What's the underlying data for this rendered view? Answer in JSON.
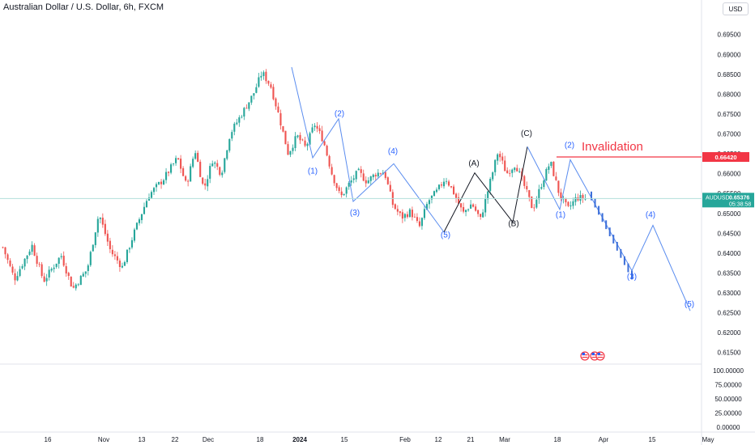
{
  "header": {
    "title": "Australian Dollar / U.S. Dollar, 6h, FXCM",
    "currency": "USD"
  },
  "colors": {
    "up": "#26a69a",
    "down": "#ef5350",
    "wave_blue": "#2962ff",
    "wave_line": "#5b8def",
    "wave_black": "#131722",
    "invalidation": "#f23645",
    "last_price": "#26a69a",
    "price_line": "#b2dfdb",
    "axis_text": "#131722",
    "separator": "#e0e3eb"
  },
  "chart_data": {
    "type": "candlestick",
    "symbol": "AUDUSD",
    "timeframe": "6h",
    "price_axis": {
      "ticks": [
        "0.69500",
        "0.69000",
        "0.68500",
        "0.68000",
        "0.67500",
        "0.67000",
        "0.66500",
        "0.66000",
        "0.65500",
        "0.65000",
        "0.64500",
        "0.64000",
        "0.63500",
        "0.63000",
        "0.62500",
        "0.62000",
        "0.61500"
      ],
      "ylim": [
        0.6125,
        0.698
      ]
    },
    "time_axis": {
      "ticks": [
        "16",
        "Nov",
        "13",
        "22",
        "Dec",
        "18",
        "2024",
        "15",
        "Feb",
        "12",
        "21",
        "Mar",
        "18",
        "Apr",
        "15",
        "May"
      ]
    },
    "price_series": {
      "anchors": [
        [
          0.0,
          0.6415
        ],
        [
          0.02,
          0.6335
        ],
        [
          0.05,
          0.642
        ],
        [
          0.07,
          0.633
        ],
        [
          0.1,
          0.6395
        ],
        [
          0.12,
          0.631
        ],
        [
          0.145,
          0.636
        ],
        [
          0.165,
          0.65
        ],
        [
          0.185,
          0.6405
        ],
        [
          0.205,
          0.6365
        ],
        [
          0.225,
          0.645
        ],
        [
          0.25,
          0.6545
        ],
        [
          0.275,
          0.6585
        ],
        [
          0.3,
          0.664
        ],
        [
          0.315,
          0.657
        ],
        [
          0.33,
          0.666
        ],
        [
          0.345,
          0.656
        ],
        [
          0.36,
          0.6635
        ],
        [
          0.375,
          0.66
        ],
        [
          0.39,
          0.67
        ],
        [
          0.41,
          0.675
        ],
        [
          0.43,
          0.68
        ],
        [
          0.445,
          0.6855
        ],
        [
          0.46,
          0.682
        ],
        [
          0.475,
          0.674
        ],
        [
          0.49,
          0.665
        ],
        [
          0.505,
          0.6695
        ],
        [
          0.52,
          0.6665
        ],
        [
          0.535,
          0.6725
        ],
        [
          0.55,
          0.6685
        ],
        [
          0.565,
          0.66
        ],
        [
          0.58,
          0.654
        ],
        [
          0.595,
          0.6575
        ],
        [
          0.61,
          0.6605
        ],
        [
          0.625,
          0.658
        ],
        [
          0.64,
          0.66
        ],
        [
          0.655,
          0.6605
        ],
        [
          0.67,
          0.652
        ],
        [
          0.685,
          0.649
        ],
        [
          0.7,
          0.6505
        ],
        [
          0.715,
          0.6465
        ],
        [
          0.73,
          0.653
        ],
        [
          0.745,
          0.6555
        ],
        [
          0.76,
          0.659
        ],
        [
          0.775,
          0.655
        ],
        [
          0.79,
          0.65
        ],
        [
          0.805,
          0.6525
        ],
        [
          0.82,
          0.6485
        ],
        [
          0.835,
          0.657
        ],
        [
          0.85,
          0.6655
        ],
        [
          0.865,
          0.66
        ],
        [
          0.88,
          0.6625
        ],
        [
          0.895,
          0.657
        ],
        [
          0.91,
          0.651
        ],
        [
          0.925,
          0.6575
        ],
        [
          0.94,
          0.663
        ],
        [
          0.955,
          0.655
        ],
        [
          0.97,
          0.651
        ],
        [
          0.985,
          0.654
        ],
        [
          1.0,
          0.65376
        ]
      ]
    },
    "last_price": {
      "value": "0.65376",
      "symbol": "AUDUSD",
      "countdown": "05:38:58"
    },
    "invalidation": {
      "label": "Invalidation",
      "price": "0.66420"
    },
    "wave_labels": [
      {
        "text": "(1)",
        "color": "blue",
        "price": 0.66
      },
      {
        "text": "(2)",
        "color": "blue",
        "price": 0.6745
      },
      {
        "text": "(3)",
        "color": "blue",
        "price": 0.6495
      },
      {
        "text": "(4)",
        "color": "blue",
        "price": 0.665
      },
      {
        "text": "(5)",
        "color": "blue",
        "price": 0.644
      },
      {
        "text": "(A)",
        "color": "black",
        "price": 0.662
      },
      {
        "text": "(B)",
        "color": "black",
        "price": 0.6468
      },
      {
        "text": "(C)",
        "color": "black",
        "price": 0.6695
      },
      {
        "text": "(1)",
        "color": "blue",
        "price": 0.649
      },
      {
        "text": "(2)",
        "color": "blue",
        "price": 0.6665
      },
      {
        "text": "(3)",
        "color": "blue",
        "price": 0.6335
      },
      {
        "text": "(4)",
        "color": "blue",
        "price": 0.649
      },
      {
        "text": "(5)",
        "color": "blue",
        "price": 0.6265
      }
    ],
    "wave_paths": {
      "main_wave": [
        0.6868,
        0.664,
        0.6738,
        0.653,
        0.6625,
        0.6453
      ],
      "abc": [
        0.6453,
        0.6602,
        0.6478,
        0.6668
      ],
      "projection": [
        0.6668,
        0.651,
        0.6635,
        0.6356,
        0.647,
        0.6255
      ]
    },
    "indicator_axis": {
      "ticks": [
        "100.00000",
        "75.00000",
        "50.00000",
        "25.00000",
        "0.00000"
      ],
      "ylim": [
        0,
        100
      ]
    }
  }
}
